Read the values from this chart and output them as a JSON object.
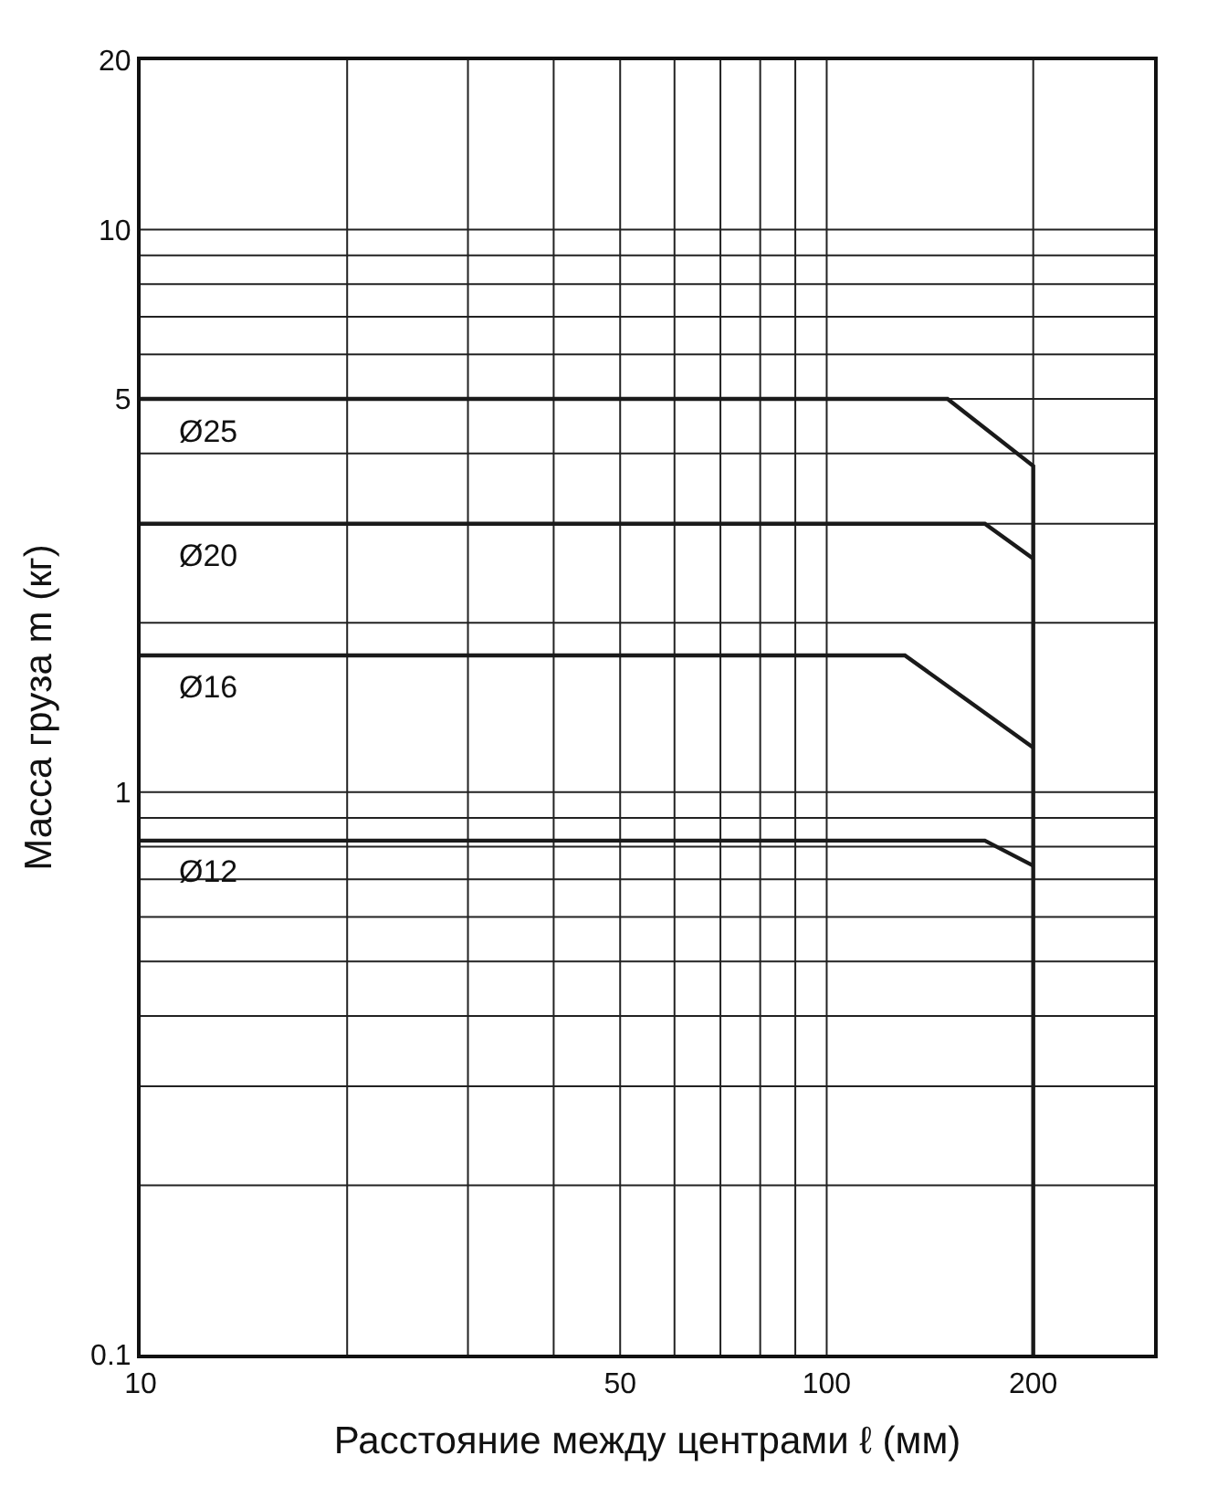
{
  "chart_data": {
    "type": "line",
    "xlabel": "Расстояние между центрами ℓ (мм)",
    "ylabel": "Масса груза m (кг)",
    "log": "xy",
    "xlim": [
      10,
      300
    ],
    "ylim": [
      0.1,
      20
    ],
    "xticks": [
      10,
      50,
      100,
      200
    ],
    "yticks": [
      0.1,
      1,
      5,
      10,
      20
    ],
    "grid": true,
    "legend": false,
    "marker": "none",
    "line_style": "solid",
    "series": [
      {
        "name": "Ø25",
        "color": "#1a1a1a",
        "x": [
          10,
          150,
          200,
          200
        ],
        "values": [
          5,
          5,
          3.8,
          0.1
        ]
      },
      {
        "name": "Ø20",
        "color": "#1a1a1a",
        "x": [
          10,
          170,
          200
        ],
        "values": [
          3,
          3,
          2.6
        ]
      },
      {
        "name": "Ø16",
        "color": "#1a1a1a",
        "x": [
          10,
          130,
          200
        ],
        "values": [
          1.75,
          1.75,
          1.2
        ]
      },
      {
        "name": "Ø12",
        "color": "#1a1a1a",
        "x": [
          10,
          170,
          200
        ],
        "values": [
          0.82,
          0.82,
          0.74
        ]
      }
    ]
  }
}
